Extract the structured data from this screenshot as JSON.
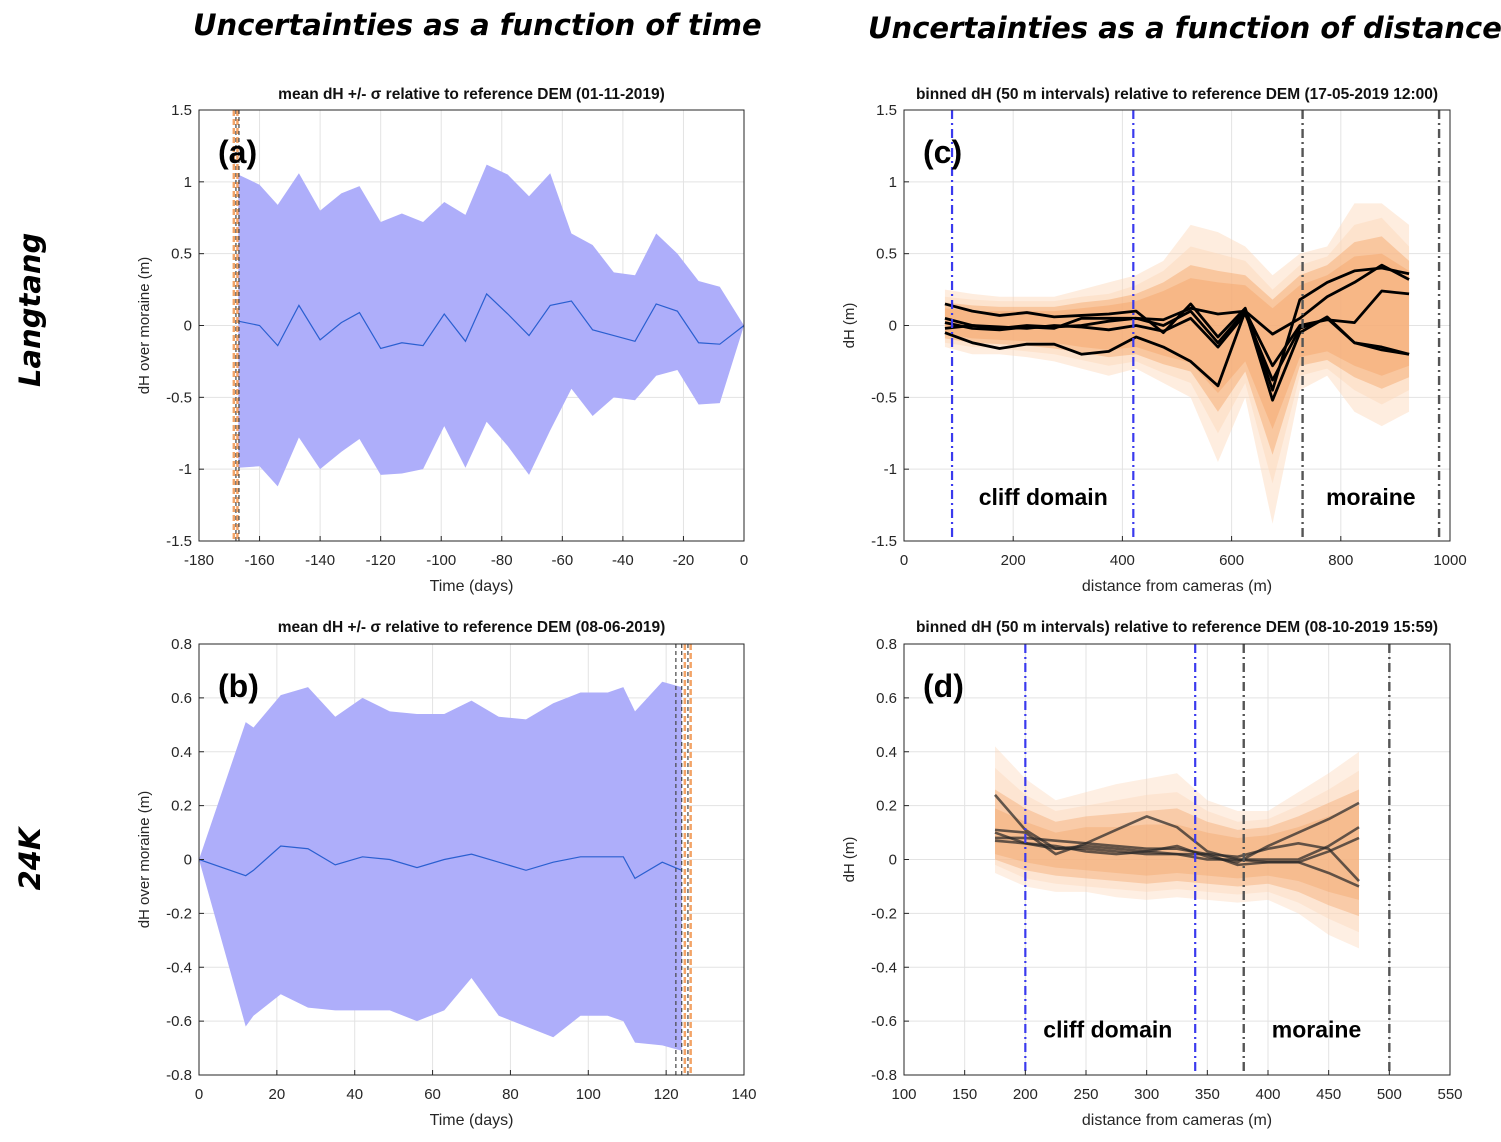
{
  "column_titles": {
    "left": "Uncertainties as a function of time",
    "right": "Uncertainties as a function of distance"
  },
  "row_labels": {
    "top": "Langtang",
    "bottom": "24K"
  },
  "colors": {
    "band": "#aeaefa",
    "mean_line": "#2a5fd0",
    "orange_light": "#fcd6b8",
    "orange_dark": "#f3a468",
    "black": "#000000",
    "blue_dash": "#3a3aee",
    "grey_dash": "#555555",
    "grid": "#e3e3e3"
  },
  "chart_data": [
    {
      "id": "a",
      "type": "area",
      "panel_label": "(a)",
      "title": "mean dH +/- σ relative to reference DEM (01-11-2019)",
      "xlabel": "Time (days)",
      "ylabel": "dH over moraine (m)",
      "xlim": [
        -180,
        0
      ],
      "ylim": [
        -1.5,
        1.5
      ],
      "xticks": [
        -180,
        -160,
        -140,
        -120,
        -100,
        -80,
        -60,
        -40,
        -20,
        0
      ],
      "yticks": [
        -1.5,
        -1,
        -0.5,
        0,
        0.5,
        1,
        1.5
      ],
      "ytick_labels": [
        "-1.5",
        "-1",
        "-0.5",
        "0",
        "0.5",
        "1",
        "1.5"
      ],
      "x": [
        -167,
        -160,
        -154,
        -147,
        -140,
        -133,
        -127,
        -120,
        -113,
        -106,
        -99,
        -92,
        -85,
        -78,
        -71,
        -64,
        -57,
        -50,
        -43,
        -36,
        -29,
        -22,
        -15,
        -8,
        0
      ],
      "mean": [
        0.03,
        0.0,
        -0.14,
        0.14,
        -0.1,
        0.02,
        0.09,
        -0.16,
        -0.12,
        -0.14,
        0.08,
        -0.11,
        0.22,
        0.08,
        -0.07,
        0.14,
        0.17,
        -0.03,
        -0.07,
        -0.11,
        0.15,
        0.1,
        -0.12,
        -0.13,
        0.0
      ],
      "upper": [
        1.05,
        0.98,
        0.84,
        1.06,
        0.8,
        0.92,
        0.97,
        0.72,
        0.78,
        0.72,
        0.86,
        0.77,
        1.12,
        1.05,
        0.9,
        1.06,
        0.64,
        0.56,
        0.37,
        0.35,
        0.64,
        0.5,
        0.31,
        0.27,
        0.0
      ],
      "lower": [
        -0.99,
        -0.98,
        -1.12,
        -0.78,
        -1.0,
        -0.88,
        -0.79,
        -1.04,
        -1.03,
        -1.0,
        -0.7,
        -0.99,
        -0.67,
        -0.84,
        -1.04,
        -0.73,
        -0.44,
        -0.63,
        -0.5,
        -0.52,
        -0.35,
        -0.31,
        -0.55,
        -0.54,
        0.0
      ],
      "vlines": [
        {
          "x": -168.5,
          "color": "#f3a468",
          "dash": "6,3",
          "width": 2.5
        },
        {
          "x": -167.8,
          "color": "#444444",
          "dash": "4,3",
          "width": 1.2
        },
        {
          "x": -167.3,
          "color": "#f3a468",
          "dash": "6,3",
          "width": 2.5
        },
        {
          "x": -166.8,
          "color": "#444444",
          "dash": "4,3",
          "width": 1.2
        }
      ]
    },
    {
      "id": "b",
      "type": "area",
      "panel_label": "(b)",
      "title": "mean dH +/- σ relative to reference DEM (08-06-2019)",
      "xlabel": "Time (days)",
      "ylabel": "dH over moraine (m)",
      "xlim": [
        0,
        140
      ],
      "ylim": [
        -0.8,
        0.8
      ],
      "xticks": [
        0,
        20,
        40,
        60,
        80,
        100,
        120,
        140
      ],
      "yticks": [
        -0.8,
        -0.6,
        -0.4,
        -0.2,
        0,
        0.2,
        0.4,
        0.6,
        0.8
      ],
      "ytick_labels": [
        "-0.8",
        "-0.6",
        "-0.4",
        "-0.2",
        "0",
        "0.2",
        "0.4",
        "0.6",
        "0.8"
      ],
      "x": [
        0,
        12,
        14,
        21,
        28,
        35,
        42,
        49,
        56,
        63,
        70,
        77,
        84,
        91,
        98,
        105,
        109,
        112,
        119,
        124
      ],
      "mean": [
        0.0,
        -0.06,
        -0.04,
        0.05,
        0.04,
        -0.02,
        0.01,
        0.0,
        -0.03,
        0.0,
        0.02,
        -0.01,
        -0.04,
        -0.01,
        0.01,
        0.01,
        0.01,
        -0.07,
        -0.01,
        -0.04
      ],
      "upper": [
        0.0,
        0.51,
        0.49,
        0.61,
        0.64,
        0.53,
        0.6,
        0.55,
        0.54,
        0.54,
        0.59,
        0.53,
        0.52,
        0.58,
        0.62,
        0.62,
        0.64,
        0.55,
        0.66,
        0.64
      ],
      "lower": [
        0.0,
        -0.62,
        -0.58,
        -0.5,
        -0.55,
        -0.56,
        -0.56,
        -0.56,
        -0.6,
        -0.56,
        -0.44,
        -0.58,
        -0.62,
        -0.66,
        -0.58,
        -0.58,
        -0.6,
        -0.68,
        -0.69,
        -0.71
      ],
      "vlines": [
        {
          "x": 122.5,
          "color": "#444444",
          "dash": "4,3",
          "width": 1.2
        },
        {
          "x": 124.0,
          "color": "#444444",
          "dash": "4,3",
          "width": 1.2
        },
        {
          "x": 124.8,
          "color": "#f3a468",
          "dash": "6,3",
          "width": 2.5
        },
        {
          "x": 125.6,
          "color": "#444444",
          "dash": "4,3",
          "width": 1.2
        },
        {
          "x": 126.3,
          "color": "#f3a468",
          "dash": "6,3",
          "width": 2.5
        }
      ]
    },
    {
      "id": "c",
      "type": "line",
      "panel_label": "(c)",
      "title": "binned dH (50 m intervals) relative to reference DEM (17-05-2019 12:00)",
      "xlabel": "distance from cameras (m)",
      "ylabel": "dH (m)",
      "xlim": [
        0,
        1000
      ],
      "ylim": [
        -1.5,
        1.5
      ],
      "xticks": [
        0,
        200,
        400,
        600,
        800,
        1000
      ],
      "yticks": [
        -1.5,
        -1,
        -0.5,
        0,
        0.5,
        1,
        1.5
      ],
      "ytick_labels": [
        "-1.5",
        "-1",
        "-0.5",
        "0",
        "0.5",
        "1",
        "1.5"
      ],
      "x": [
        75,
        125,
        175,
        225,
        275,
        325,
        375,
        425,
        475,
        525,
        575,
        625,
        675,
        725,
        775,
        825,
        875,
        925
      ],
      "bands": [
        {
          "upper": [
            0.25,
            0.22,
            0.2,
            0.2,
            0.2,
            0.25,
            0.3,
            0.35,
            0.45,
            0.7,
            0.65,
            0.55,
            0.35,
            0.5,
            0.55,
            0.85,
            0.85,
            0.7
          ],
          "lower": [
            -0.15,
            -0.2,
            -0.2,
            -0.22,
            -0.25,
            -0.3,
            -0.35,
            -0.3,
            -0.4,
            -0.5,
            -0.95,
            -0.5,
            -1.38,
            -0.45,
            -0.35,
            -0.6,
            -0.7,
            -0.6
          ],
          "opacity": 0.45
        },
        {
          "upper": [
            0.2,
            0.18,
            0.17,
            0.17,
            0.17,
            0.2,
            0.22,
            0.28,
            0.38,
            0.55,
            0.5,
            0.45,
            0.25,
            0.42,
            0.48,
            0.7,
            0.75,
            0.55
          ],
          "lower": [
            -0.12,
            -0.15,
            -0.16,
            -0.18,
            -0.2,
            -0.24,
            -0.28,
            -0.25,
            -0.33,
            -0.4,
            -0.75,
            -0.4,
            -1.1,
            -0.35,
            -0.3,
            -0.45,
            -0.55,
            -0.45
          ],
          "opacity": 0.45
        },
        {
          "upper": [
            0.16,
            0.14,
            0.13,
            0.13,
            0.13,
            0.16,
            0.18,
            0.22,
            0.3,
            0.42,
            0.38,
            0.35,
            0.18,
            0.35,
            0.42,
            0.58,
            0.62,
            0.45
          ],
          "lower": [
            -0.09,
            -0.12,
            -0.13,
            -0.14,
            -0.16,
            -0.19,
            -0.22,
            -0.2,
            -0.27,
            -0.32,
            -0.6,
            -0.32,
            -0.9,
            -0.28,
            -0.24,
            -0.36,
            -0.44,
            -0.36
          ],
          "opacity": 0.45
        },
        {
          "upper": [
            0.12,
            0.1,
            0.1,
            0.1,
            0.1,
            0.12,
            0.14,
            0.17,
            0.24,
            0.33,
            0.3,
            0.28,
            0.12,
            0.28,
            0.35,
            0.48,
            0.5,
            0.38
          ],
          "lower": [
            -0.06,
            -0.09,
            -0.1,
            -0.11,
            -0.12,
            -0.15,
            -0.17,
            -0.15,
            -0.21,
            -0.26,
            -0.47,
            -0.25,
            -0.72,
            -0.22,
            -0.18,
            -0.28,
            -0.35,
            -0.28
          ],
          "opacity": 0.45
        }
      ],
      "series": [
        {
          "name": "line1",
          "values": [
            0.15,
            0.1,
            0.07,
            0.09,
            0.06,
            0.07,
            0.08,
            0.1,
            -0.05,
            0.15,
            -0.08,
            0.12,
            -0.45,
            0.18,
            0.3,
            0.38,
            0.4,
            0.36
          ]
        },
        {
          "name": "line2",
          "values": [
            0.05,
            0.0,
            -0.02,
            0.0,
            -0.01,
            0.0,
            0.03,
            0.05,
            0.04,
            0.12,
            0.08,
            0.1,
            -0.06,
            0.05,
            0.2,
            0.3,
            0.42,
            0.32
          ]
        },
        {
          "name": "line3",
          "values": [
            0.02,
            -0.02,
            -0.03,
            -0.01,
            -0.02,
            0.05,
            0.05,
            0.05,
            0.0,
            0.1,
            -0.12,
            0.1,
            -0.28,
            0.0,
            0.04,
            0.02,
            0.24,
            0.22
          ]
        },
        {
          "name": "line4",
          "values": [
            -0.02,
            0.0,
            -0.01,
            -0.02,
            0.0,
            -0.01,
            -0.03,
            0.0,
            -0.04,
            0.05,
            -0.15,
            0.08,
            -0.38,
            -0.02,
            0.05,
            -0.12,
            -0.17,
            -0.2
          ]
        },
        {
          "name": "line5",
          "values": [
            -0.05,
            -0.12,
            -0.16,
            -0.13,
            -0.13,
            -0.2,
            -0.18,
            -0.08,
            -0.15,
            -0.25,
            -0.42,
            0.1,
            -0.52,
            -0.05,
            0.06,
            -0.12,
            -0.15,
            -0.2
          ]
        }
      ],
      "vlines": [
        {
          "x": 88,
          "color": "#3a3aee",
          "dash": "9,4,2,4",
          "width": 2.2
        },
        {
          "x": 420,
          "color": "#3a3aee",
          "dash": "9,4,2,4",
          "width": 2.2
        },
        {
          "x": 730,
          "color": "#555555",
          "dash": "9,4,2,4",
          "width": 2.4
        },
        {
          "x": 980,
          "color": "#555555",
          "dash": "9,4,2,4",
          "width": 2.4
        }
      ],
      "annotations": [
        {
          "text": "cliff domain",
          "x": 255,
          "y": -1.25
        },
        {
          "text": "moraine",
          "x": 855,
          "y": -1.25
        }
      ]
    },
    {
      "id": "d",
      "type": "line",
      "panel_label": "(d)",
      "title": "binned dH (50 m intervals) relative to reference DEM (08-10-2019 15:59)",
      "xlabel": "distance from cameras (m)",
      "ylabel": "dH (m)",
      "xlim": [
        100,
        550
      ],
      "ylim": [
        -0.8,
        0.8
      ],
      "xticks": [
        100,
        150,
        200,
        250,
        300,
        350,
        400,
        450,
        500,
        550
      ],
      "yticks": [
        -0.8,
        -0.6,
        -0.4,
        -0.2,
        0,
        0.2,
        0.4,
        0.6,
        0.8
      ],
      "ytick_labels": [
        "-0.8",
        "-0.6",
        "-0.4",
        "-0.2",
        "0",
        "0.2",
        "0.4",
        "0.6",
        "0.8"
      ],
      "x": [
        175,
        200,
        225,
        250,
        275,
        300,
        325,
        350,
        375,
        400,
        425,
        450,
        475
      ],
      "bands": [
        {
          "upper": [
            0.42,
            0.3,
            0.22,
            0.25,
            0.28,
            0.3,
            0.32,
            0.22,
            0.18,
            0.18,
            0.25,
            0.32,
            0.4
          ],
          "lower": [
            -0.05,
            -0.1,
            -0.12,
            -0.12,
            -0.14,
            -0.15,
            -0.14,
            -0.15,
            -0.16,
            -0.15,
            -0.2,
            -0.28,
            -0.33
          ],
          "opacity": 0.4
        },
        {
          "upper": [
            0.34,
            0.24,
            0.18,
            0.2,
            0.22,
            0.24,
            0.25,
            0.18,
            0.14,
            0.15,
            0.2,
            0.26,
            0.33
          ],
          "lower": [
            -0.02,
            -0.07,
            -0.09,
            -0.1,
            -0.11,
            -0.12,
            -0.11,
            -0.12,
            -0.13,
            -0.12,
            -0.16,
            -0.22,
            -0.27
          ],
          "opacity": 0.4
        },
        {
          "upper": [
            0.26,
            0.19,
            0.14,
            0.16,
            0.17,
            0.18,
            0.19,
            0.14,
            0.11,
            0.12,
            0.16,
            0.21,
            0.26
          ],
          "lower": [
            0.0,
            -0.04,
            -0.06,
            -0.07,
            -0.08,
            -0.09,
            -0.08,
            -0.09,
            -0.1,
            -0.09,
            -0.12,
            -0.17,
            -0.21
          ],
          "opacity": 0.4
        },
        {
          "upper": [
            0.19,
            0.14,
            0.1,
            0.12,
            0.12,
            0.13,
            0.13,
            0.1,
            0.08,
            0.09,
            0.12,
            0.16,
            0.2
          ],
          "lower": [
            0.02,
            -0.01,
            -0.03,
            -0.04,
            -0.05,
            -0.06,
            -0.05,
            -0.06,
            -0.07,
            -0.06,
            -0.08,
            -0.12,
            -0.15
          ],
          "opacity": 0.4
        }
      ],
      "series": [
        {
          "name": "line1",
          "values": [
            0.24,
            0.11,
            0.04,
            0.04,
            0.03,
            0.02,
            0.02,
            0.02,
            0.01,
            0.04,
            0.06,
            0.04,
            -0.08
          ]
        },
        {
          "name": "line2",
          "values": [
            0.11,
            0.1,
            0.02,
            0.06,
            0.11,
            0.16,
            0.12,
            0.03,
            0.0,
            0.0,
            0.0,
            0.05,
            0.12
          ]
        },
        {
          "name": "line3",
          "values": [
            0.1,
            0.06,
            0.04,
            0.05,
            0.04,
            0.03,
            0.05,
            0.01,
            -0.01,
            0.05,
            0.1,
            0.15,
            0.21
          ]
        },
        {
          "name": "line4",
          "values": [
            0.08,
            0.08,
            0.07,
            0.06,
            0.05,
            0.04,
            0.04,
            0.02,
            -0.02,
            -0.01,
            -0.01,
            0.03,
            0.08
          ]
        },
        {
          "name": "line5",
          "values": [
            0.07,
            0.06,
            0.05,
            0.03,
            0.02,
            0.03,
            0.02,
            0.0,
            0.0,
            -0.01,
            -0.01,
            -0.05,
            -0.1
          ]
        }
      ],
      "vlines": [
        {
          "x": 200,
          "color": "#3a3aee",
          "dash": "9,4,2,4",
          "width": 2.2
        },
        {
          "x": 340,
          "color": "#3a3aee",
          "dash": "9,4,2,4",
          "width": 2.2
        },
        {
          "x": 380,
          "color": "#555555",
          "dash": "9,4,2,4",
          "width": 2.4
        },
        {
          "x": 500,
          "color": "#555555",
          "dash": "9,4,2,4",
          "width": 2.4
        }
      ],
      "annotations": [
        {
          "text": "cliff domain",
          "x": 268,
          "y": -0.66
        },
        {
          "text": "moraine",
          "x": 440,
          "y": -0.66
        }
      ]
    }
  ]
}
